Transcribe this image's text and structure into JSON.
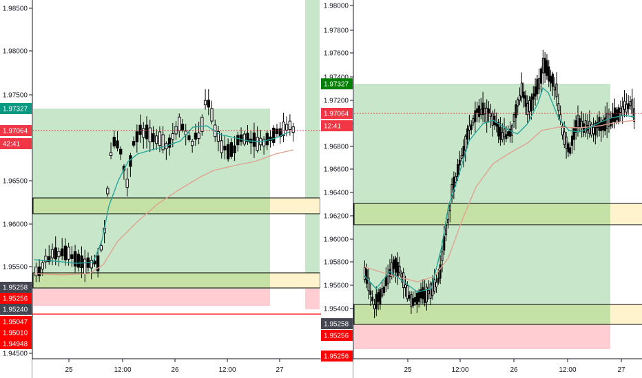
{
  "left": {
    "price_axis": [
      "1.98500",
      "1.98000",
      "1.97500",
      "1.96500",
      "1.96000",
      "1.95500",
      "1.94500"
    ],
    "time_axis": [
      "25",
      "12:00",
      "26",
      "12:00",
      "27"
    ],
    "badges": [
      {
        "text": "1.97327",
        "bg": "#089981",
        "fg": "#ffffff"
      },
      {
        "text": "1.97064",
        "bg": "#f23645",
        "fg": "#ffffff"
      },
      {
        "text": "42:41",
        "bg": "#f23645",
        "fg": "#ffffff"
      },
      {
        "text": "1.95258",
        "bg": "#434651",
        "fg": "#ffffff"
      },
      {
        "text": "1.95256",
        "bg": "#ff0000",
        "fg": "#ffffff"
      },
      {
        "text": "1.95240",
        "bg": "#434651",
        "fg": "#ffffff"
      },
      {
        "text": "1.95047",
        "bg": "#ff0000",
        "fg": "#ffffff"
      },
      {
        "text": "1.95010",
        "bg": "#ff0000",
        "fg": "#ffffff"
      },
      {
        "text": "1.94948",
        "bg": "#ff0000",
        "fg": "#ffffff"
      }
    ]
  },
  "right": {
    "price_axis": [
      "1.98000",
      "1.97800",
      "1.97600",
      "1.97400",
      "1.97200",
      "1.97000",
      "1.96800",
      "1.96600",
      "1.96400",
      "1.96200",
      "1.96000",
      "1.95800",
      "1.95600",
      "1.95400"
    ],
    "time_axis": [
      "25",
      "12:00",
      "26",
      "12:00",
      "27"
    ],
    "badges": [
      {
        "text": "1.97327",
        "bg": "#008000",
        "fg": "#ffffff"
      },
      {
        "text": "1.97064",
        "bg": "#f23645",
        "fg": "#ffffff"
      },
      {
        "text": "12:41",
        "bg": "#f23645",
        "fg": "#ffffff"
      },
      {
        "text": "1.95258",
        "bg": "#434651",
        "fg": "#ffffff"
      },
      {
        "text": "1.95256",
        "bg": "#ff0000",
        "fg": "#ffffff"
      },
      {
        "text": "1.95256",
        "bg": "#ff0000",
        "fg": "#ffffff"
      }
    ]
  },
  "colors": {
    "profit_zone": "#c8e6c9",
    "loss_zone": "#ffcdd2",
    "zone_green": "#c5e1a5",
    "zone_yellow": "#fff3cd",
    "ema_fast": "#26a69a",
    "ema_slow": "#e0a290",
    "current_price_line": "#f23645",
    "stop_line": "#ff0000"
  }
}
